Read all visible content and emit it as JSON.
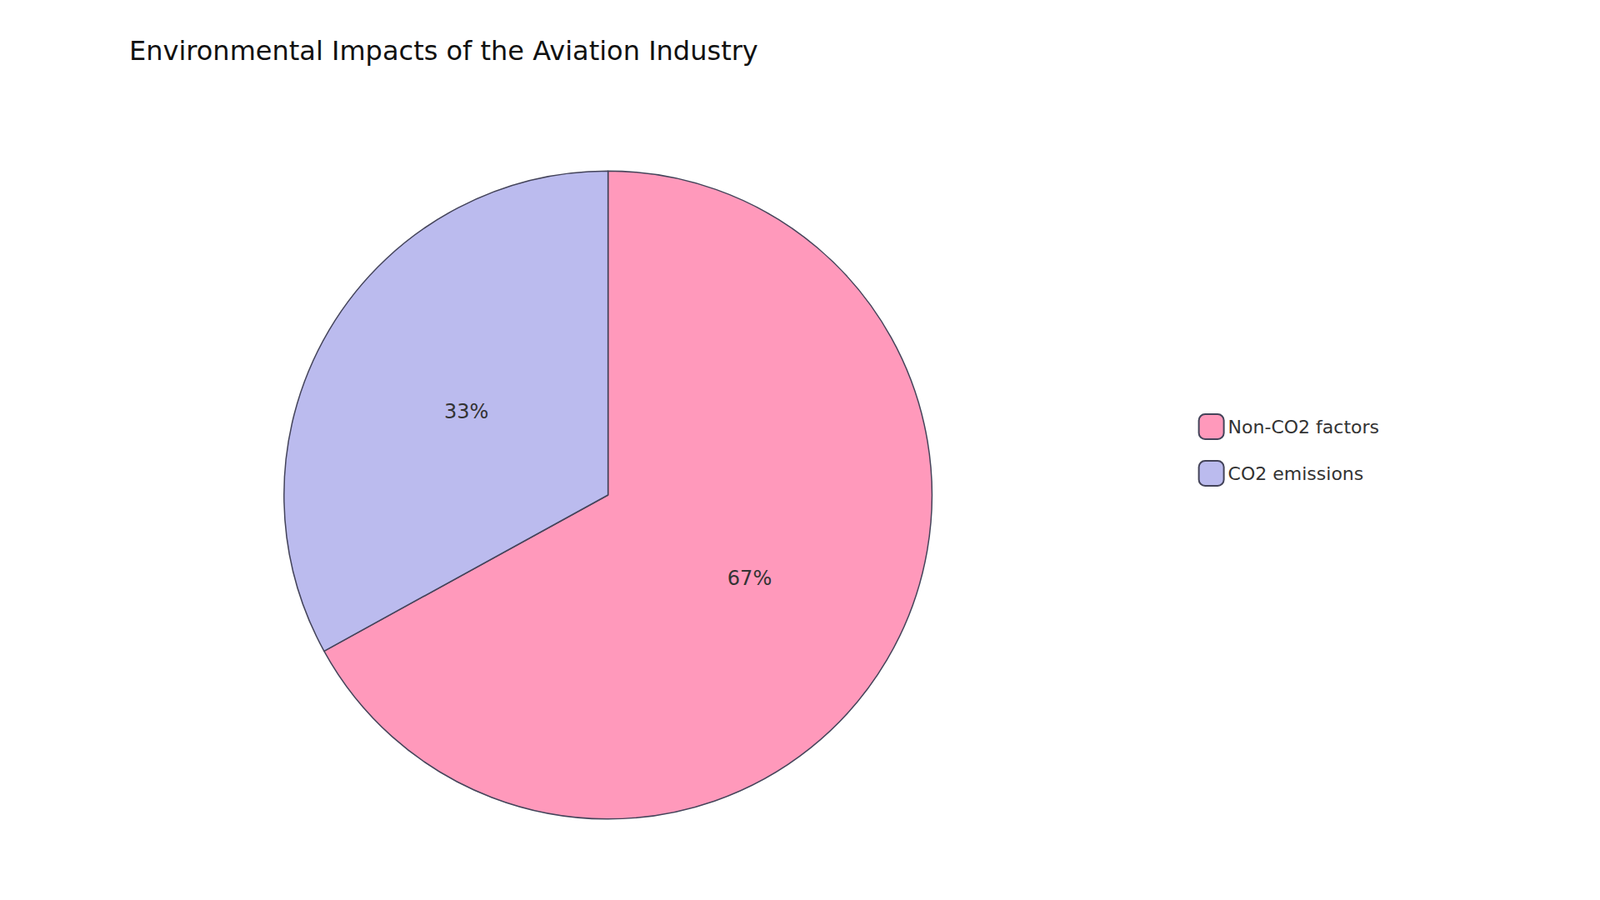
{
  "chart_data": {
    "type": "pie",
    "title": "Environmental Impacts of the Aviation Industry",
    "categories": [
      "Non-CO2 factors",
      "CO2 emissions"
    ],
    "values": [
      67,
      33
    ],
    "value_labels": [
      "67%",
      "33%"
    ],
    "colors": [
      "#FF99BB",
      "#BBBBEE"
    ],
    "data_labels": true,
    "legend": "right"
  }
}
